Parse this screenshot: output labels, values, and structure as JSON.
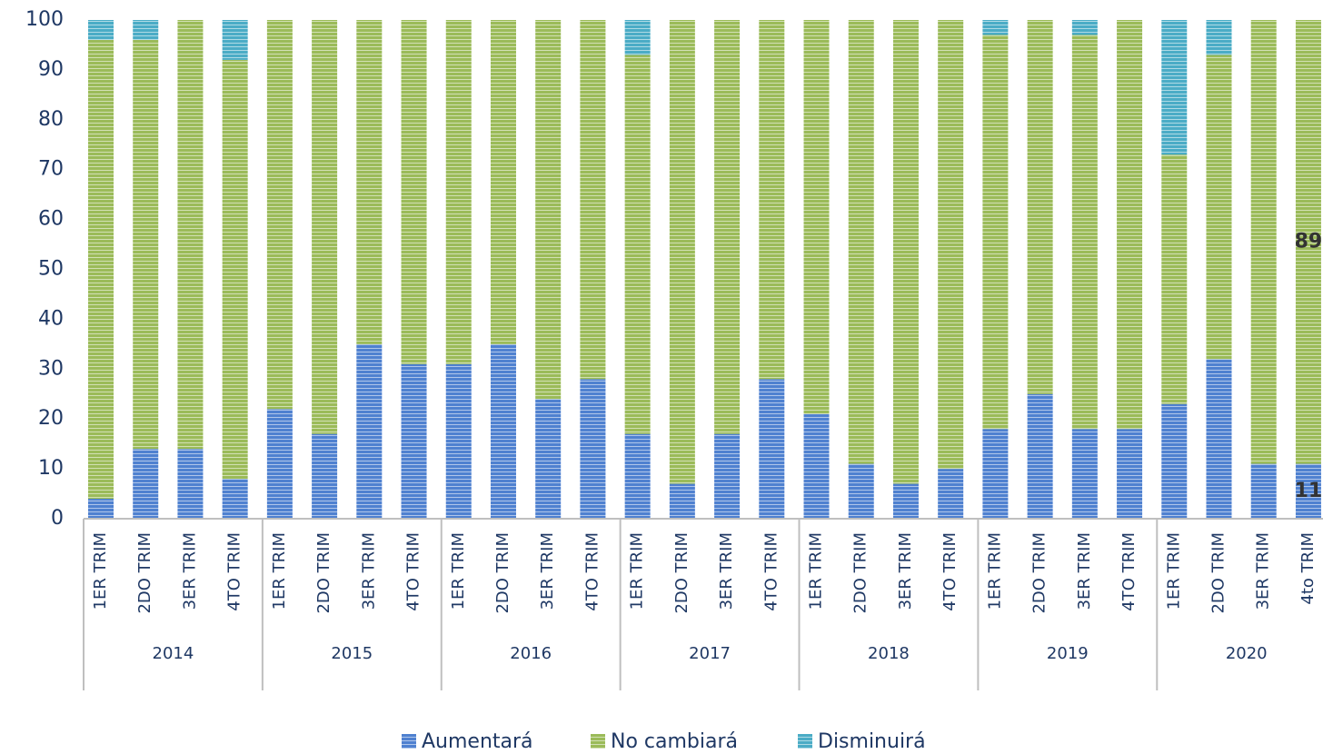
{
  "chart_data": {
    "type": "stacked_bar",
    "categories": [
      "1ER TRIM",
      "2DO TRIM",
      "3ER TRIM",
      "4TO TRIM",
      "1ER TRIM",
      "2DO TRIM",
      "3ER TRIM",
      "4TO TRIM",
      "1ER TRIM",
      "2DO TRIM",
      "3ER TRIM",
      "4TO TRIM",
      "1ER TRIM",
      "2DO TRIM",
      "3ER TRIM",
      "4TO TRIM",
      "1ER TRIM",
      "2DO TRIM",
      "3ER TRIM",
      "4TO TRIM",
      "1ER TRIM",
      "2DO TRIM",
      "3ER TRIM",
      "4TO TRIM",
      "1ER TRIM",
      "2DO TRIM",
      "3ER TRIM",
      "4to TRIM"
    ],
    "groups": [
      "2014",
      "2015",
      "2016",
      "2017",
      "2018",
      "2019",
      "2020"
    ],
    "series": [
      {
        "name": "Aumentará",
        "color": "#4f81d0",
        "values": [
          4,
          14,
          14,
          8,
          22,
          17,
          35,
          31,
          31,
          35,
          24,
          28,
          17,
          7,
          17,
          28,
          21,
          11,
          7,
          10,
          18,
          25,
          18,
          18,
          23,
          32,
          11,
          11
        ],
        "value_labels": [
          null,
          null,
          null,
          null,
          null,
          null,
          null,
          null,
          null,
          null,
          null,
          null,
          null,
          null,
          null,
          null,
          null,
          null,
          null,
          null,
          null,
          null,
          null,
          null,
          null,
          null,
          null,
          "11"
        ]
      },
      {
        "name": "No cambiará",
        "color": "#9bbb59",
        "values": [
          92,
          82,
          86,
          84,
          78,
          83,
          65,
          69,
          69,
          65,
          76,
          72,
          76,
          93,
          83,
          72,
          79,
          89,
          93,
          90,
          79,
          75,
          79,
          82,
          50,
          61,
          89,
          89
        ],
        "value_labels": [
          null,
          null,
          null,
          null,
          null,
          null,
          null,
          null,
          null,
          null,
          null,
          null,
          null,
          null,
          null,
          null,
          null,
          null,
          null,
          null,
          null,
          null,
          null,
          null,
          null,
          null,
          null,
          "89"
        ]
      },
      {
        "name": "Disminuirá",
        "color": "#4bacc6",
        "values": [
          4,
          4,
          0,
          8,
          0,
          0,
          0,
          0,
          0,
          0,
          0,
          0,
          7,
          0,
          0,
          0,
          0,
          0,
          0,
          0,
          3,
          0,
          3,
          0,
          27,
          7,
          0,
          0
        ]
      }
    ],
    "ylim": [
      0,
      100
    ],
    "yticks": [
      0,
      10,
      20,
      30,
      40,
      50,
      60,
      70,
      80,
      90,
      100
    ]
  }
}
